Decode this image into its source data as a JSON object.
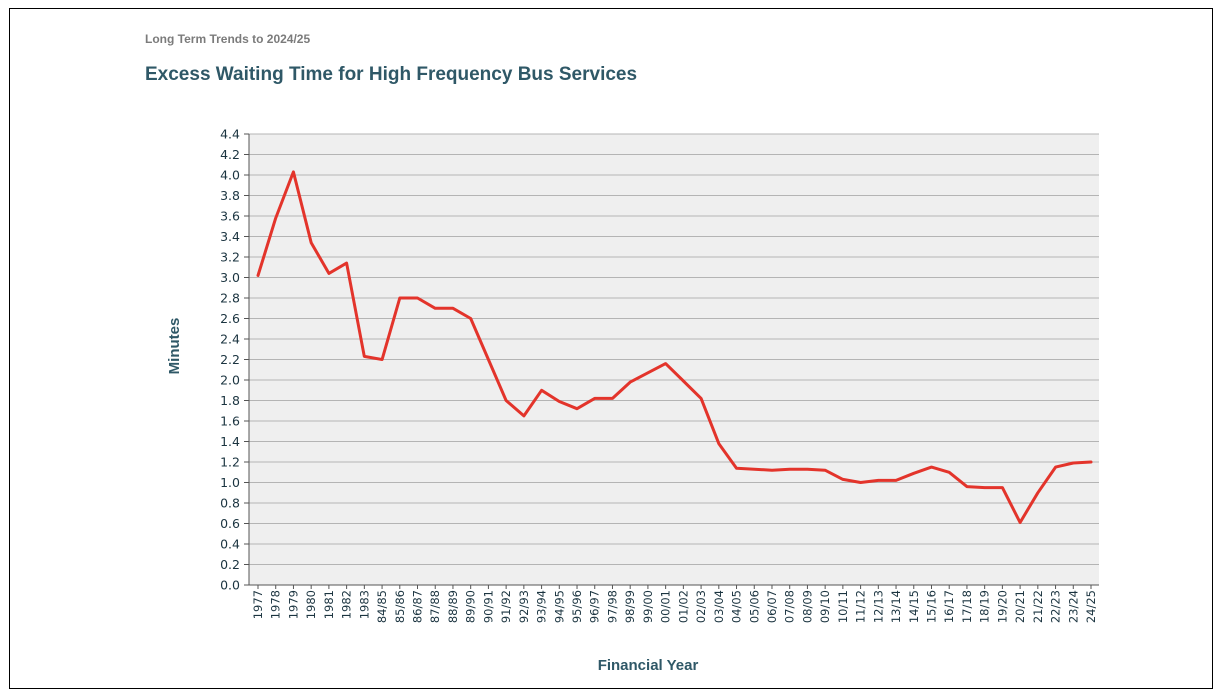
{
  "header": {
    "subtitle": "Long Term Trends to 2024/25",
    "title": "Excess Waiting Time for High Frequency Bus Services"
  },
  "colors": {
    "line": "#e3342b",
    "plot_bg": "#efefef",
    "grid": "#b4b4b4",
    "title": "#2f5867",
    "tick_text": "#1b3440"
  },
  "chart_data": {
    "type": "line",
    "title": "Excess Waiting Time for High Frequency Bus Services",
    "xlabel": "Financial Year",
    "ylabel": "Minutes",
    "ylim": [
      0,
      4.4
    ],
    "y_ticks": [
      "0.0",
      "0.2",
      "0.4",
      "0.6",
      "0.8",
      "1.0",
      "1.2",
      "1.4",
      "1.6",
      "1.8",
      "2.0",
      "2.2",
      "2.4",
      "2.6",
      "2.8",
      "3.0",
      "3.2",
      "3.4",
      "3.6",
      "3.8",
      "4.0",
      "4.2",
      "4.4"
    ],
    "grid": true,
    "categories": [
      "1977",
      "1978",
      "1979",
      "1980",
      "1981",
      "1982",
      "1983",
      "84/85",
      "85/86",
      "86/87",
      "87/88",
      "88/89",
      "89/90",
      "90/91",
      "91/92",
      "92/93",
      "93/94",
      "94/95",
      "95/96",
      "96/97",
      "97/98",
      "98/99",
      "99/00",
      "00/01",
      "01/02",
      "02/03",
      "03/04",
      "04/05",
      "05/06",
      "06/07",
      "07/08",
      "08/09",
      "09/10",
      "10/11",
      "11/12",
      "12/13",
      "13/14",
      "14/15",
      "15/16",
      "16/17",
      "17/18",
      "18/19",
      "19/20",
      "20/21",
      "21/22",
      "22/23",
      "23/24",
      "24/25"
    ],
    "series": [
      {
        "name": "Excess Waiting Time",
        "values": [
          3.02,
          3.58,
          4.03,
          3.34,
          3.04,
          3.14,
          2.23,
          2.2,
          2.8,
          2.8,
          2.7,
          2.7,
          2.6,
          2.2,
          1.8,
          1.65,
          1.9,
          1.79,
          1.72,
          1.82,
          1.82,
          1.98,
          2.07,
          2.16,
          1.99,
          1.82,
          1.38,
          1.14,
          1.13,
          1.12,
          1.13,
          1.13,
          1.12,
          1.03,
          1.0,
          1.02,
          1.02,
          1.09,
          1.15,
          1.1,
          0.96,
          0.95,
          0.95,
          0.61,
          0.9,
          1.15,
          1.19,
          1.2
        ]
      }
    ]
  }
}
